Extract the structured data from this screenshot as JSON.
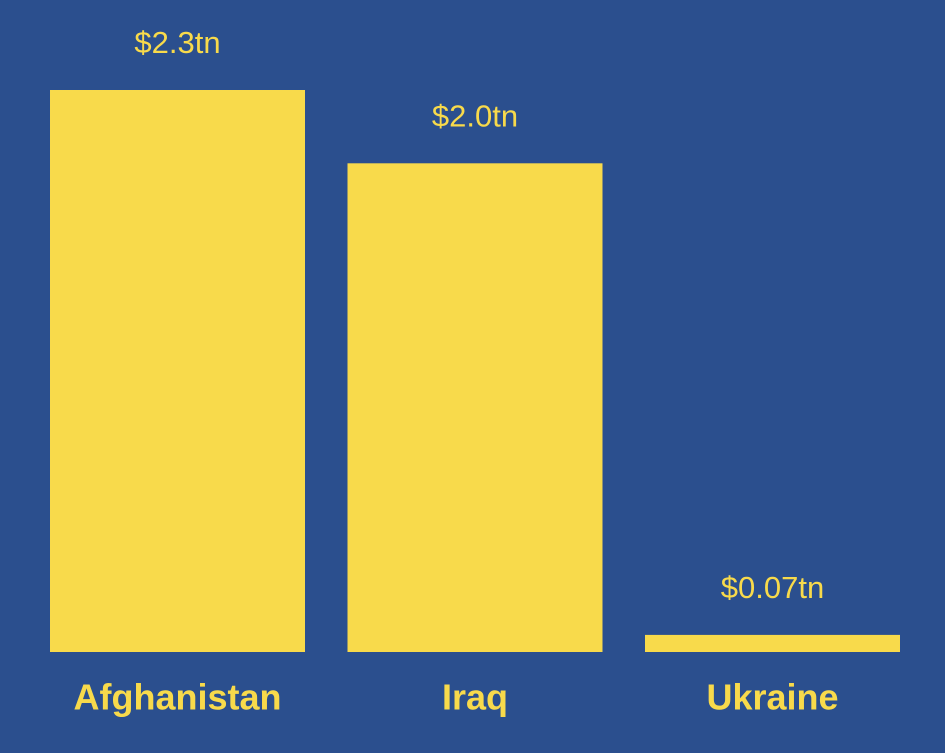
{
  "chart_data": {
    "type": "bar",
    "categories": [
      "Afghanistan",
      "Iraq",
      "Ukraine"
    ],
    "values": [
      2.3,
      2.0,
      0.07
    ],
    "value_labels": [
      "$2.3tn",
      "$2.0tn",
      "$0.07tn"
    ],
    "color": "#f8da4b"
  }
}
